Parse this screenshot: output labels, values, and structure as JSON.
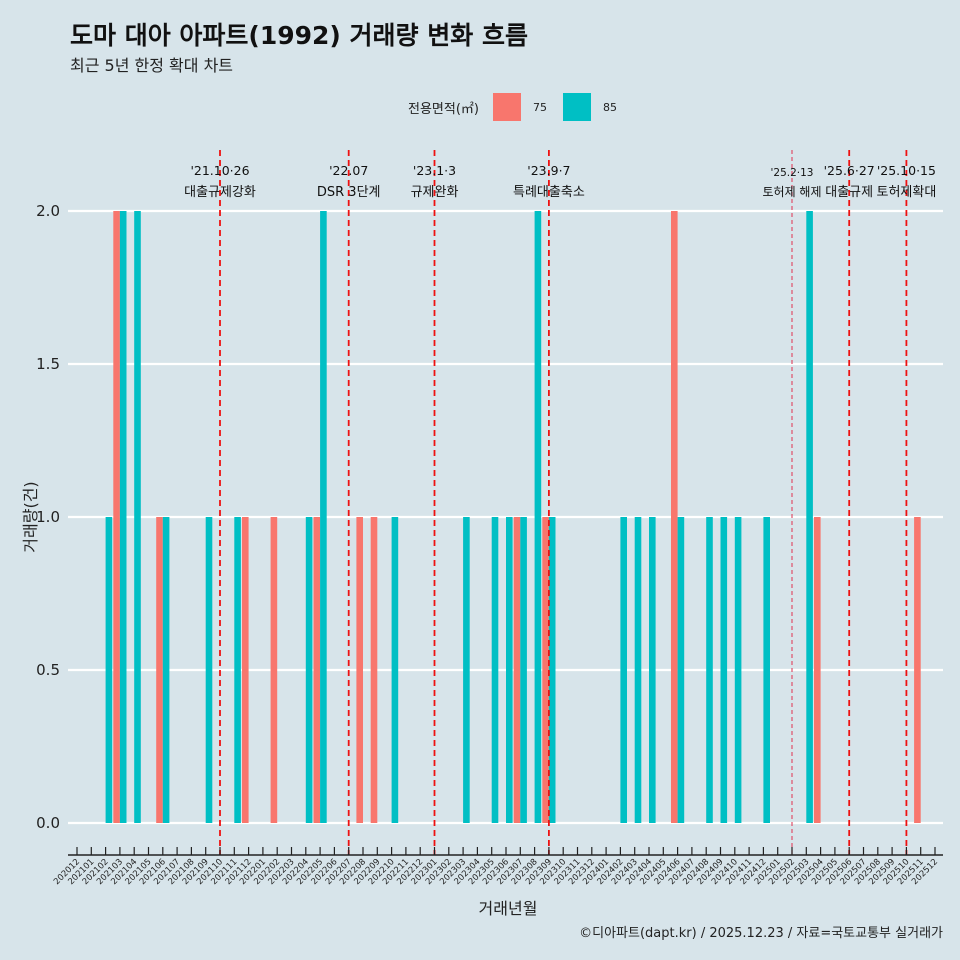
{
  "title": "도마 대아 아파트(1992) 거래량 변화 흐름",
  "subtitle": "최근 5년 한정 확대 차트",
  "caption": "©디아파트(dapt.kr) / 2025.12.23 / 자료=국토교통부 실거래가",
  "legend": {
    "title": "전용면적(㎡)",
    "items": [
      {
        "label": "75",
        "color": "#f8766d"
      },
      {
        "label": "85",
        "color": "#00bfc4"
      }
    ]
  },
  "chart_data": {
    "type": "bar",
    "title": "도마 대아 아파트(1992) 거래량 변화 흐름",
    "xlabel": "거래년월",
    "ylabel": "거래량(건)",
    "ylim": [
      0,
      2
    ],
    "yticks": [
      "0.0",
      "0.5",
      "1.0",
      "1.5",
      "2.0"
    ],
    "grid": true,
    "legend_position": "top",
    "categories": [
      "202012",
      "202101",
      "202102",
      "202103",
      "202104",
      "202105",
      "202106",
      "202107",
      "202108",
      "202109",
      "202110",
      "202111",
      "202112",
      "202201",
      "202202",
      "202203",
      "202204",
      "202205",
      "202206",
      "202207",
      "202208",
      "202209",
      "202210",
      "202211",
      "202212",
      "202301",
      "202302",
      "202303",
      "202304",
      "202305",
      "202306",
      "202307",
      "202308",
      "202309",
      "202310",
      "202311",
      "202312",
      "202401",
      "202402",
      "202403",
      "202404",
      "202405",
      "202406",
      "202407",
      "202408",
      "202409",
      "202410",
      "202411",
      "202412",
      "202501",
      "202502",
      "202503",
      "202504",
      "202505",
      "202506",
      "202507",
      "202508",
      "202509",
      "202510",
      "202511",
      "202512"
    ],
    "series": [
      {
        "name": "75",
        "color": "#f8766d",
        "values": [
          0,
          0,
          0,
          2,
          0,
          0,
          1,
          0,
          0,
          0,
          0,
          0,
          1,
          0,
          1,
          0,
          0,
          1,
          0,
          0,
          1,
          1,
          0,
          0,
          0,
          0,
          0,
          0,
          0,
          0,
          0,
          1,
          0,
          1,
          0,
          0,
          0,
          0,
          0,
          0,
          0,
          0,
          2,
          0,
          0,
          0,
          0,
          0,
          0,
          0,
          0,
          0,
          1,
          0,
          0,
          0,
          0,
          0,
          0,
          1,
          0
        ]
      },
      {
        "name": "85",
        "color": "#00bfc4",
        "values": [
          0,
          0,
          1,
          2,
          2,
          0,
          1,
          0,
          0,
          1,
          0,
          1,
          0,
          0,
          0,
          0,
          1,
          2,
          0,
          0,
          0,
          0,
          1,
          0,
          0,
          0,
          0,
          1,
          0,
          1,
          1,
          1,
          2,
          1,
          0,
          0,
          0,
          0,
          1,
          1,
          1,
          0,
          1,
          0,
          1,
          1,
          1,
          0,
          1,
          0,
          0,
          2,
          0,
          0,
          0,
          0,
          0,
          0,
          0,
          0,
          0
        ]
      }
    ],
    "annotations": [
      {
        "category": "202110",
        "date": "'21.10·26",
        "label": "대출규제강화"
      },
      {
        "category": "202207",
        "date": "'22.07",
        "label": "DSR 3단계"
      },
      {
        "category": "202301",
        "date": "'23.1·3",
        "label": "규제완화"
      },
      {
        "category": "202309",
        "date": "'23.9·7",
        "label": "특례대출축소"
      },
      {
        "category": "202502",
        "date": "'25.2·13",
        "label": "토허제 해제",
        "minor": true
      },
      {
        "category": "202506",
        "date": "'25.6·27",
        "label": "대출규제"
      },
      {
        "category": "202510",
        "date": "'25.10·15",
        "label": "토허제확대"
      }
    ],
    "line_color": "#ee1111"
  }
}
